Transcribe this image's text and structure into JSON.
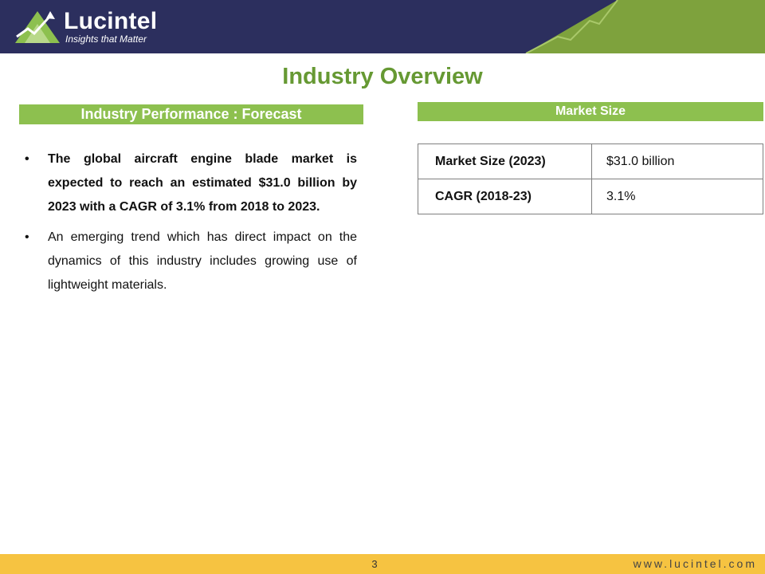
{
  "header": {
    "brand_name": "Lucintel",
    "tagline": "Insights that Matter",
    "colors": {
      "banner": "#2c2f5e",
      "accent_green": "#7ea23d"
    }
  },
  "page_title": "Industry Overview",
  "left_section": {
    "heading": "Industry Performance : Forecast",
    "bullets": [
      {
        "text": "The global aircraft engine blade market is expected to reach an estimated $31.0 billion by 2023 with a CAGR of 3.1% from 2018 to 2023."
      },
      {
        "text": "An emerging trend which has direct impact on the dynamics of this industry includes growing use of lightweight materials."
      }
    ]
  },
  "right_section": {
    "heading": "Market Size",
    "rows": [
      {
        "label": "Market Size (2023)",
        "value": "$31.0 billion"
      },
      {
        "label": "CAGR (2018-23)",
        "value": "3.1%"
      }
    ]
  },
  "footer": {
    "page_number": "3",
    "url": "www.lucintel.com",
    "color": "#f6c341"
  },
  "colors": {
    "title_green": "#669933",
    "bar_green": "#8dc04f"
  }
}
